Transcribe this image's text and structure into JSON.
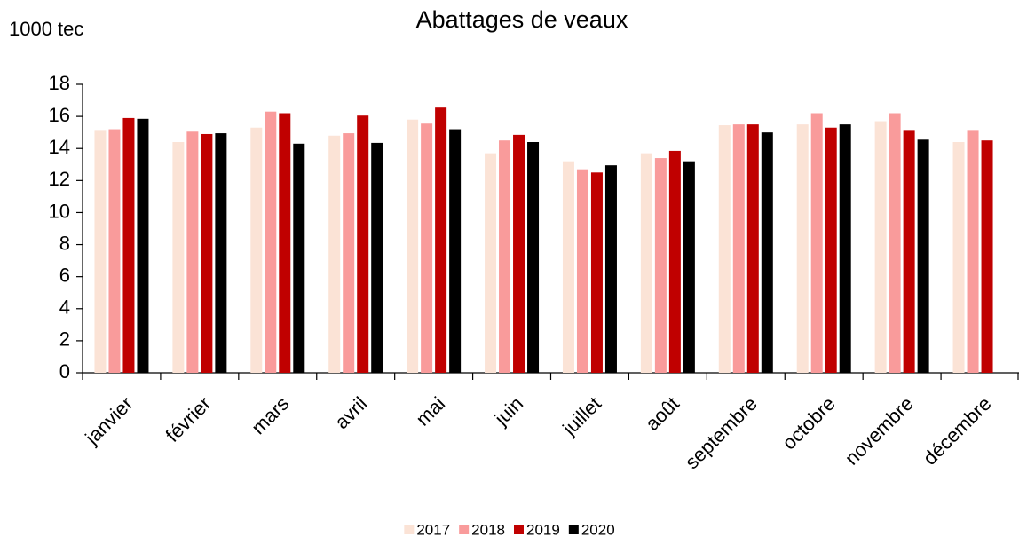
{
  "chart_data": {
    "type": "bar",
    "title": "Abattages de veaux",
    "y_label": "1000 tec",
    "categories": [
      "janvier",
      "février",
      "mars",
      "avril",
      "mai",
      "juin",
      "juillet",
      "août",
      "septembre",
      "octobre",
      "novembre",
      "décembre"
    ],
    "series": [
      {
        "name": "2017",
        "color": "#fbe3d6",
        "values": [
          15.1,
          14.4,
          15.3,
          14.8,
          15.8,
          13.7,
          13.2,
          13.7,
          15.45,
          15.5,
          15.7,
          14.4
        ]
      },
      {
        "name": "2018",
        "color": "#f99b9b",
        "values": [
          15.2,
          15.05,
          16.3,
          14.95,
          15.55,
          14.5,
          12.7,
          13.4,
          15.5,
          16.2,
          16.2,
          15.1
        ]
      },
      {
        "name": "2019",
        "color": "#c00000",
        "values": [
          15.9,
          14.9,
          16.2,
          16.05,
          16.55,
          14.85,
          12.5,
          13.85,
          15.5,
          15.3,
          15.1,
          14.5
        ]
      },
      {
        "name": "2020",
        "color": "#000000",
        "values": [
          15.85,
          14.95,
          14.3,
          14.35,
          15.2,
          14.4,
          12.95,
          13.2,
          15.0,
          15.5,
          14.55,
          null
        ]
      }
    ],
    "ylim": [
      0,
      18
    ],
    "yticks": [
      0,
      2,
      4,
      6,
      8,
      10,
      12,
      14,
      16,
      18
    ],
    "grid": false,
    "legend": "bottom"
  }
}
